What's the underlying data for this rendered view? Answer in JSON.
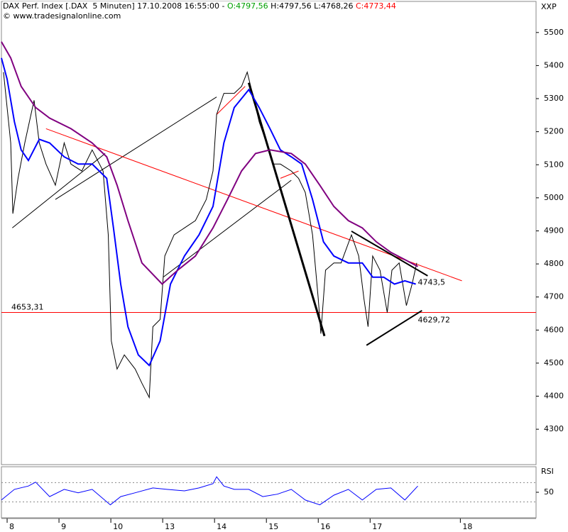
{
  "chart_data": [
    {
      "type": "line",
      "title_parts": [
        {
          "text": "DAX Perf. Index [.DAX  5 Minuten] 17.10.2008 16:55:00 - ",
          "color": "#000000"
        },
        {
          "text": "O:4797,56",
          "color": "#00a000"
        },
        {
          "text": " H:4797,56 L:4768,26 ",
          "color": "#000000"
        },
        {
          "text": "C:4773,44",
          "color": "#ff0000"
        }
      ],
      "subtitle": "© www.tradesignalonline.com",
      "y_axis_label": "XXP",
      "xlim": [
        -0.11,
        10.2
      ],
      "ylim": [
        4193,
        5594
      ],
      "xticks": [
        {
          "value": 0,
          "label": "8"
        },
        {
          "value": 1,
          "label": "9"
        },
        {
          "value": 2,
          "label": "10"
        },
        {
          "value": 3,
          "label": "13"
        },
        {
          "value": 4,
          "label": "14"
        },
        {
          "value": 5,
          "label": "15"
        },
        {
          "value": 6,
          "label": "16"
        },
        {
          "value": 7,
          "label": "17"
        },
        {
          "value": 8.74,
          "label": "18"
        }
      ],
      "yticks": [
        4300,
        4400,
        4500,
        4600,
        4700,
        4800,
        4900,
        5000,
        5100,
        5200,
        5300,
        5400,
        5500
      ],
      "series": [
        {
          "color": "#000000",
          "width": 1,
          "x": [
            -0.07,
            0.07,
            0.11,
            0.21,
            0.34,
            0.52,
            0.62,
            0.75,
            0.93,
            1.1,
            1.23,
            1.44,
            1.64,
            1.85,
            1.95,
            2.01,
            2.12,
            2.26,
            2.47,
            2.6,
            2.74,
            2.81,
            2.95,
            3.04,
            3.22,
            3.42,
            3.63,
            3.84,
            3.97,
            4.04,
            4.18,
            4.38,
            4.52,
            4.63,
            4.73,
            4.86,
            5.0,
            5.14,
            5.27,
            5.48,
            5.62,
            5.75,
            5.89,
            6.0,
            6.05,
            6.14,
            6.3,
            6.44,
            6.64,
            6.78,
            6.88,
            6.96,
            7.05,
            7.19,
            7.33,
            7.42,
            7.56,
            7.7,
            7.81,
            7.9
          ],
          "values": [
            5380,
            5166,
            4952,
            5059,
            5166,
            5295,
            5166,
            5102,
            5038,
            5166,
            5102,
            5081,
            5145,
            5081,
            4888,
            4567,
            4482,
            4525,
            4482,
            4439,
            4396,
            4610,
            4632,
            4824,
            4888,
            4909,
            4931,
            4995,
            5081,
            5252,
            5316,
            5316,
            5337,
            5380,
            5316,
            5230,
            5166,
            5102,
            5102,
            5081,
            5059,
            5016,
            4888,
            4696,
            4589,
            4781,
            4803,
            4803,
            4888,
            4824,
            4696,
            4610,
            4824,
            4781,
            4653,
            4781,
            4803,
            4674,
            4739,
            4803
          ]
        },
        {
          "color": "#0000ff",
          "width": 2,
          "x": [
            -0.11,
            0,
            0.14,
            0.27,
            0.41,
            0.62,
            0.82,
            1.1,
            1.37,
            1.64,
            1.92,
            2.05,
            2.19,
            2.33,
            2.53,
            2.74,
            2.95,
            3.15,
            3.42,
            3.7,
            3.97,
            4.18,
            4.38,
            4.66,
            4.86,
            5.07,
            5.27,
            5.48,
            5.68,
            5.89,
            6.1,
            6.3,
            6.58,
            6.85,
            7.05,
            7.26,
            7.47,
            7.67,
            7.88
          ],
          "values": [
            5423,
            5359,
            5230,
            5145,
            5113,
            5177,
            5166,
            5124,
            5102,
            5102,
            5059,
            4909,
            4739,
            4610,
            4525,
            4493,
            4567,
            4739,
            4824,
            4888,
            4974,
            5166,
            5273,
            5327,
            5273,
            5209,
            5145,
            5124,
            5102,
            4995,
            4867,
            4824,
            4803,
            4803,
            4760,
            4760,
            4739,
            4749,
            4739
          ]
        },
        {
          "color": "#800080",
          "width": 2,
          "x": [
            -0.11,
            0.07,
            0.27,
            0.55,
            0.82,
            1.23,
            1.64,
            1.92,
            2.12,
            2.33,
            2.6,
            2.99,
            3.29,
            3.63,
            3.97,
            4.25,
            4.52,
            4.79,
            5.07,
            5.48,
            5.75,
            6.03,
            6.3,
            6.58,
            6.85,
            7.12,
            7.4,
            7.67,
            7.92
          ],
          "values": [
            5472,
            5423,
            5337,
            5273,
            5241,
            5209,
            5166,
            5124,
            5038,
            4931,
            4803,
            4739,
            4781,
            4824,
            4909,
            4995,
            5081,
            5134,
            5145,
            5134,
            5102,
            5038,
            4974,
            4931,
            4909,
            4867,
            4835,
            4813,
            4792
          ]
        }
      ],
      "trendlines": [
        {
          "x": [
            0.1,
            1.89
          ],
          "y": [
            4909,
            5134
          ],
          "color": "#000000",
          "width": 1
        },
        {
          "x": [
            0.93,
            4.04
          ],
          "y": [
            4995,
            5305
          ],
          "color": "#000000",
          "width": 1
        },
        {
          "x": [
            3.01,
            5.48
          ],
          "y": [
            4760,
            5053
          ],
          "color": "#000000",
          "width": 1
        },
        {
          "x": [
            0.75,
            8.77
          ],
          "y": [
            5209,
            4749
          ],
          "color": "#ff0000",
          "width": 1
        },
        {
          "x": [
            4.04,
            4.59
          ],
          "y": [
            5252,
            5337
          ],
          "color": "#ff0000",
          "width": 1
        },
        {
          "x": [
            5.27,
            5.62
          ],
          "y": [
            5059,
            5081
          ],
          "color": "#ff0000",
          "width": 1
        },
        {
          "x": [
            4.66,
            6.12
          ],
          "y": [
            5348,
            4582
          ],
          "color": "#000000",
          "width": 3
        },
        {
          "x": [
            6.64,
            8.11
          ],
          "y": [
            4899,
            4764
          ],
          "color": "#000000",
          "width": 2
        },
        {
          "x": [
            6.93,
            8.0
          ],
          "y": [
            4554,
            4659
          ],
          "color": "#000000",
          "width": 2
        }
      ],
      "hline": {
        "value": 4653.31,
        "label": "4653,31",
        "color": "#ff0000"
      },
      "annotations": [
        {
          "x": 7.92,
          "value": 4743.5,
          "label": "4743,5"
        },
        {
          "x": 7.92,
          "value": 4629.72,
          "label": "4629,72"
        }
      ]
    },
    {
      "type": "line",
      "y_axis_label": "RSI",
      "xlim": [
        -0.11,
        10.2
      ],
      "ylim": [
        0,
        100
      ],
      "yticks": [
        50
      ],
      "levels": [
        70,
        30
      ],
      "series": [
        {
          "color": "#0000ff",
          "width": 1,
          "x": [
            -0.11,
            0.14,
            0.41,
            0.55,
            0.82,
            1.1,
            1.37,
            1.64,
            1.99,
            2.19,
            2.47,
            2.81,
            3.08,
            3.42,
            3.7,
            3.97,
            4.04,
            4.18,
            4.38,
            4.66,
            4.93,
            5.21,
            5.48,
            5.75,
            6.03,
            6.3,
            6.58,
            6.85,
            7.12,
            7.4,
            7.67,
            7.92
          ],
          "values": [
            34,
            56,
            63,
            71,
            41,
            56,
            49,
            56,
            24,
            41,
            49,
            59,
            56,
            53,
            59,
            68,
            82,
            63,
            56,
            56,
            41,
            46,
            56,
            34,
            24,
            44,
            56,
            34,
            56,
            59,
            34,
            63
          ]
        }
      ]
    }
  ]
}
